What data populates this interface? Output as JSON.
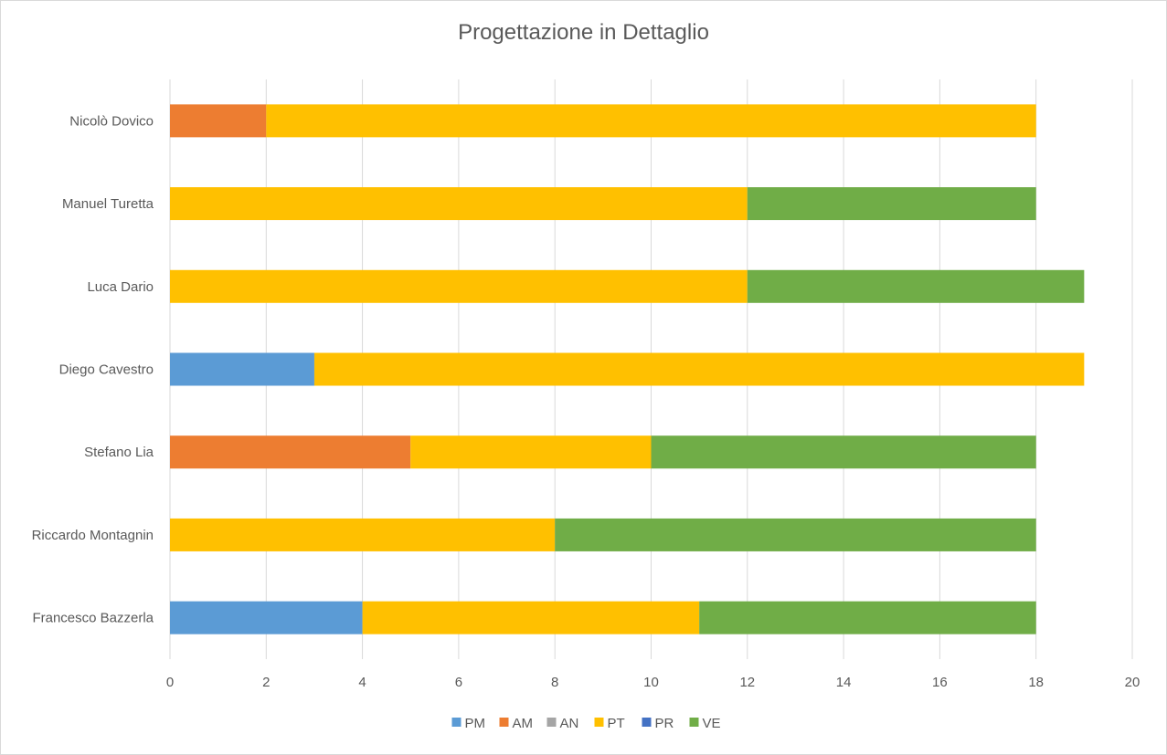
{
  "chart_data": {
    "type": "bar",
    "orientation": "horizontal",
    "stacked": true,
    "title": "Progettazione in Dettaglio",
    "xlabel": "",
    "ylabel": "",
    "xlim": [
      0,
      20
    ],
    "x_ticks": [
      0,
      2,
      4,
      6,
      8,
      10,
      12,
      14,
      16,
      18,
      20
    ],
    "grid": "vertical",
    "legend_position": "bottom",
    "categories": [
      "Francesco Bazzerla",
      "Riccardo Montagnin",
      "Stefano Lia",
      "Diego Cavestro",
      "Luca Dario",
      "Manuel Turetta",
      "Nicolò Dovico"
    ],
    "series": [
      {
        "name": "PM",
        "color": "#5b9bd5",
        "values": [
          4,
          0,
          0,
          3,
          0,
          0,
          0
        ]
      },
      {
        "name": "AM",
        "color": "#ed7d31",
        "values": [
          0,
          0,
          5,
          0,
          0,
          0,
          2
        ]
      },
      {
        "name": "AN",
        "color": "#a5a5a5",
        "values": [
          0,
          0,
          0,
          0,
          0,
          0,
          0
        ]
      },
      {
        "name": "PT",
        "color": "#ffc000",
        "values": [
          7,
          8,
          5,
          16,
          12,
          12,
          16
        ]
      },
      {
        "name": "PR",
        "color": "#4472c4",
        "values": [
          0,
          0,
          0,
          0,
          0,
          0,
          0
        ]
      },
      {
        "name": "VE",
        "color": "#70ad47",
        "values": [
          7,
          10,
          8,
          0,
          7,
          6,
          0
        ]
      }
    ]
  }
}
